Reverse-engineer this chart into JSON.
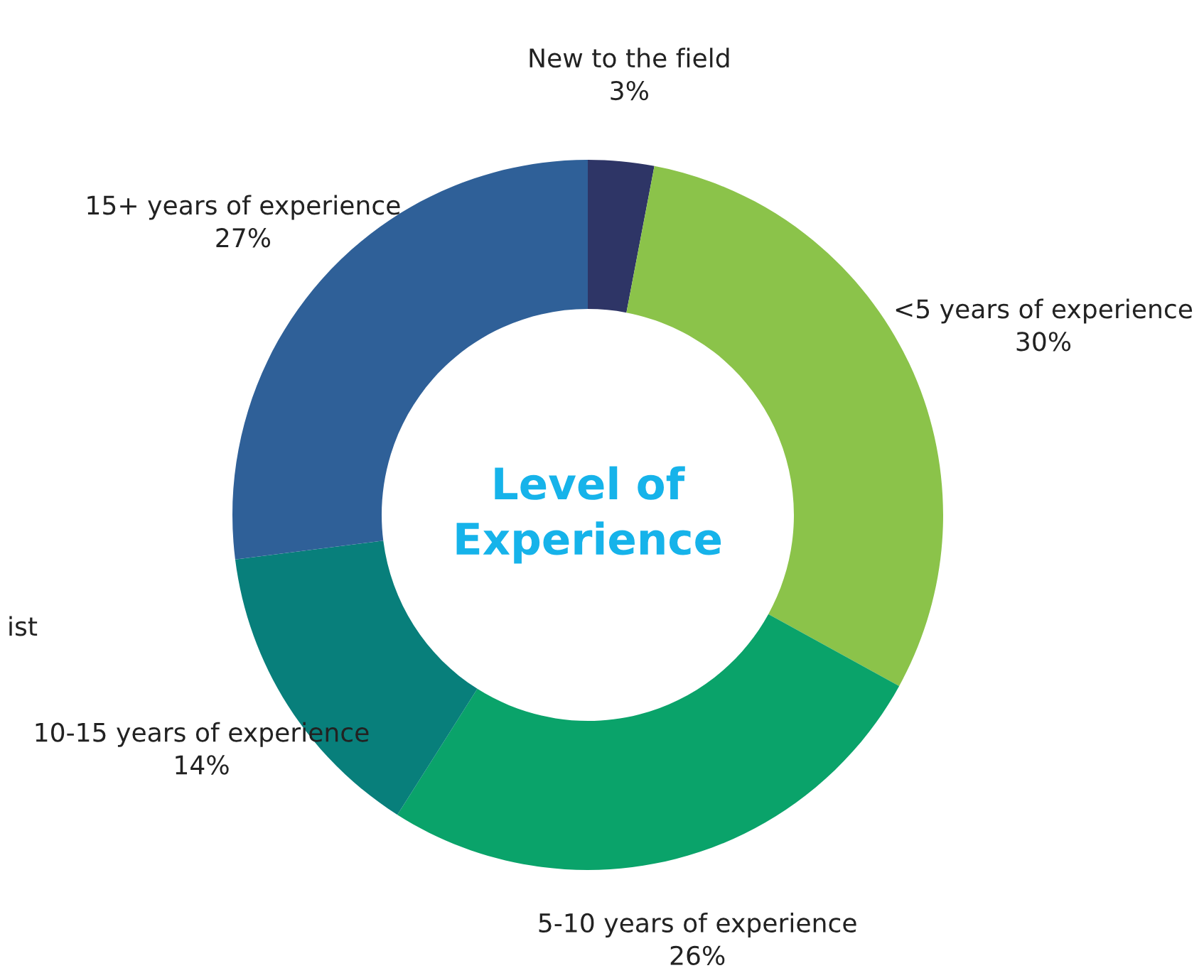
{
  "chart_data": {
    "type": "donut",
    "title": "Level of\nExperience",
    "categories": [
      "New to the field",
      "<5 years of experience",
      "5-10 years of experience",
      "10-15 years of experience",
      "15+ years of experience"
    ],
    "values": [
      3,
      30,
      26,
      14,
      27
    ],
    "colors": [
      "#2e3566",
      "#8bc34a",
      "#0aa36a",
      "#087f7b",
      "#2f6098"
    ],
    "value_labels": [
      "3%",
      "30%",
      "26%",
      "14%",
      "27%"
    ],
    "annotations": [
      "ist"
    ],
    "legend": false
  }
}
